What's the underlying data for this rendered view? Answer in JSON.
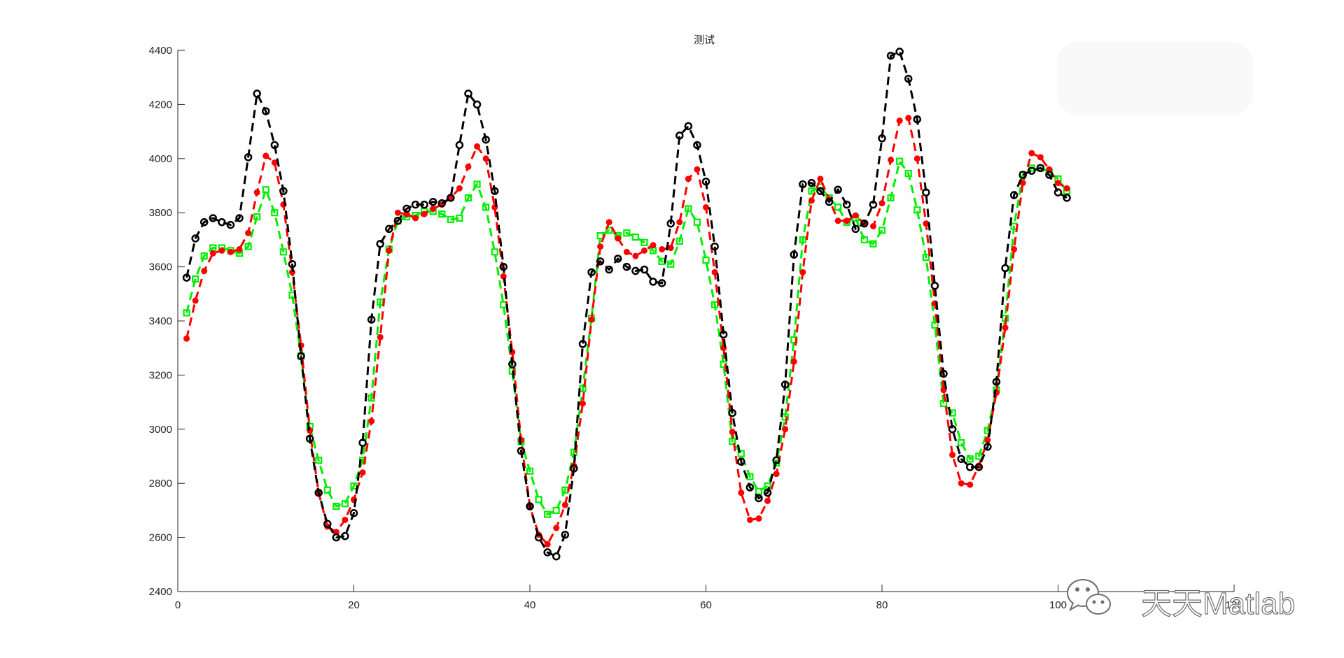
{
  "figure": {
    "background": "#ffffff",
    "axis_color": "#262626"
  },
  "watermark": {
    "text": "天天Matlab",
    "icon": "wechat-icon"
  },
  "chart_data": {
    "type": "line",
    "title": "测试",
    "xlabel": "",
    "ylabel": "",
    "xlim": [
      0,
      120
    ],
    "ylim": [
      2400,
      4400
    ],
    "xticks": [
      0,
      20,
      40,
      60,
      80,
      100,
      120
    ],
    "xtick_labels": [
      "0",
      "20",
      "40",
      "60",
      "80",
      "100",
      "120"
    ],
    "yticks": [
      2400,
      2600,
      2800,
      3000,
      3200,
      3400,
      3600,
      3800,
      4000,
      4200,
      4400
    ],
    "ytick_labels": [
      "2400",
      "2600",
      "2800",
      "3000",
      "3200",
      "3400",
      "3600",
      "3800",
      "4000",
      "4200",
      "4400"
    ],
    "grid": false,
    "legend": "none",
    "x": [
      1,
      2,
      3,
      4,
      5,
      6,
      7,
      8,
      9,
      10,
      11,
      12,
      13,
      14,
      15,
      16,
      17,
      18,
      19,
      20,
      21,
      22,
      23,
      24,
      25,
      26,
      27,
      28,
      29,
      30,
      31,
      32,
      33,
      34,
      35,
      36,
      37,
      38,
      39,
      40,
      41,
      42,
      43,
      44,
      45,
      46,
      47,
      48,
      49,
      50,
      51,
      52,
      53,
      54,
      55,
      56,
      57,
      58,
      59,
      60,
      61,
      62,
      63,
      64,
      65,
      66,
      67,
      68,
      69,
      70,
      71,
      72,
      73,
      74,
      75,
      76,
      77,
      78,
      79,
      80,
      81,
      82,
      83,
      84,
      85,
      86,
      87,
      88,
      89,
      90,
      91,
      92,
      93,
      94,
      95,
      96,
      97,
      98,
      99,
      100,
      101
    ],
    "series": [
      {
        "color": "#000000",
        "marker": "circle-open",
        "line": "dashed",
        "values": [
          3560,
          3705,
          3765,
          3780,
          3765,
          3755,
          3780,
          4005,
          4240,
          4175,
          4050,
          3880,
          3610,
          3270,
          2965,
          2765,
          2650,
          2600,
          2605,
          2690,
          2950,
          3405,
          3685,
          3740,
          3770,
          3815,
          3830,
          3830,
          3840,
          3835,
          3855,
          4050,
          4240,
          4200,
          4070,
          3880,
          3600,
          3240,
          2920,
          2715,
          2600,
          2545,
          2530,
          2610,
          2855,
          3315,
          3580,
          3620,
          3590,
          3630,
          3600,
          3585,
          3590,
          3545,
          3540,
          3760,
          4085,
          4120,
          4050,
          3915,
          3675,
          3350,
          3060,
          2880,
          2785,
          2745,
          2765,
          2885,
          3165,
          3645,
          3905,
          3910,
          3880,
          3840,
          3885,
          3830,
          3740,
          3760,
          3830,
          4075,
          4380,
          4395,
          4295,
          4145,
          3875,
          3530,
          3205,
          3000,
          2890,
          2860,
          2860,
          2935,
          3175,
          3595,
          3865,
          3940,
          3955,
          3965,
          3940,
          3875,
          3855
        ]
      },
      {
        "color": "#ff0000",
        "marker": "filled-dot",
        "line": "dashed",
        "values": [
          3335,
          3475,
          3585,
          3650,
          3660,
          3655,
          3665,
          3725,
          3875,
          4010,
          3985,
          3830,
          3580,
          3310,
          2995,
          2765,
          2640,
          2620,
          2665,
          2740,
          2840,
          3030,
          3340,
          3660,
          3800,
          3795,
          3780,
          3795,
          3815,
          3830,
          3855,
          3890,
          3970,
          4045,
          4000,
          3820,
          3565,
          3285,
          2960,
          2715,
          2610,
          2575,
          2635,
          2720,
          2865,
          3095,
          3405,
          3675,
          3765,
          3705,
          3655,
          3640,
          3660,
          3680,
          3665,
          3670,
          3765,
          3925,
          3960,
          3820,
          3580,
          3300,
          2990,
          2765,
          2665,
          2670,
          2735,
          2835,
          3000,
          3250,
          3580,
          3845,
          3925,
          3850,
          3770,
          3770,
          3790,
          3760,
          3750,
          3835,
          3995,
          4140,
          4150,
          4000,
          3760,
          3465,
          3145,
          2905,
          2800,
          2795,
          2865,
          2960,
          3135,
          3375,
          3665,
          3910,
          4020,
          4005,
          3960,
          3910,
          3890
        ]
      },
      {
        "color": "#00ee00",
        "marker": "square-open",
        "line": "dashed",
        "values": [
          3430,
          3555,
          3640,
          3670,
          3670,
          3660,
          3650,
          3675,
          3785,
          3885,
          3800,
          3655,
          3495,
          3270,
          3010,
          2885,
          2775,
          2715,
          2725,
          2790,
          2885,
          3115,
          3470,
          3665,
          3770,
          3785,
          3790,
          3805,
          3805,
          3795,
          3775,
          3780,
          3855,
          3905,
          3820,
          3655,
          3460,
          3215,
          2955,
          2845,
          2740,
          2685,
          2700,
          2775,
          2915,
          3150,
          3410,
          3715,
          3735,
          3715,
          3725,
          3710,
          3690,
          3660,
          3620,
          3610,
          3695,
          3815,
          3765,
          3625,
          3460,
          3240,
          2955,
          2910,
          2825,
          2770,
          2790,
          2875,
          3045,
          3330,
          3700,
          3880,
          3895,
          3855,
          3820,
          3765,
          3780,
          3700,
          3685,
          3735,
          3855,
          3990,
          3945,
          3810,
          3635,
          3385,
          3095,
          3060,
          2950,
          2890,
          2900,
          2995,
          3145,
          3410,
          3750,
          3940,
          3965,
          3965,
          3950,
          3925,
          3880
        ]
      }
    ]
  }
}
